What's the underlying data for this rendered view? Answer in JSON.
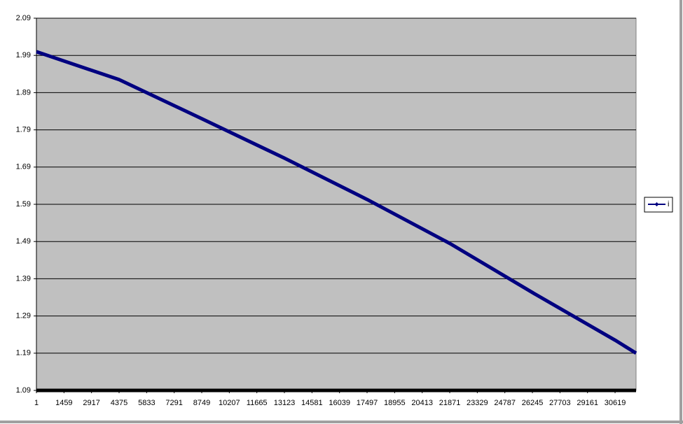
{
  "chart_data": {
    "type": "line",
    "x": [
      1,
      4375,
      8749,
      13123,
      17497,
      21871,
      26245,
      30619,
      31730
    ],
    "series": [
      {
        "name": "i",
        "color": "#000080",
        "values": [
          2.0,
          1.925,
          1.82,
          1.714,
          1.603,
          1.485,
          1.353,
          1.225,
          1.19
        ]
      }
    ],
    "xlim": [
      1,
      31730
    ],
    "xticks": [
      1,
      1459,
      2917,
      4375,
      5833,
      7291,
      8749,
      10207,
      11665,
      13123,
      14581,
      16039,
      17497,
      18955,
      20413,
      21871,
      23329,
      24787,
      26245,
      27703,
      29161,
      30619
    ],
    "ylim": [
      1.09,
      2.09
    ],
    "yticks": [
      1.09,
      1.19,
      1.29,
      1.39,
      1.49,
      1.59,
      1.69,
      1.79,
      1.89,
      1.99,
      2.09
    ],
    "grid": true,
    "legend": "right"
  }
}
